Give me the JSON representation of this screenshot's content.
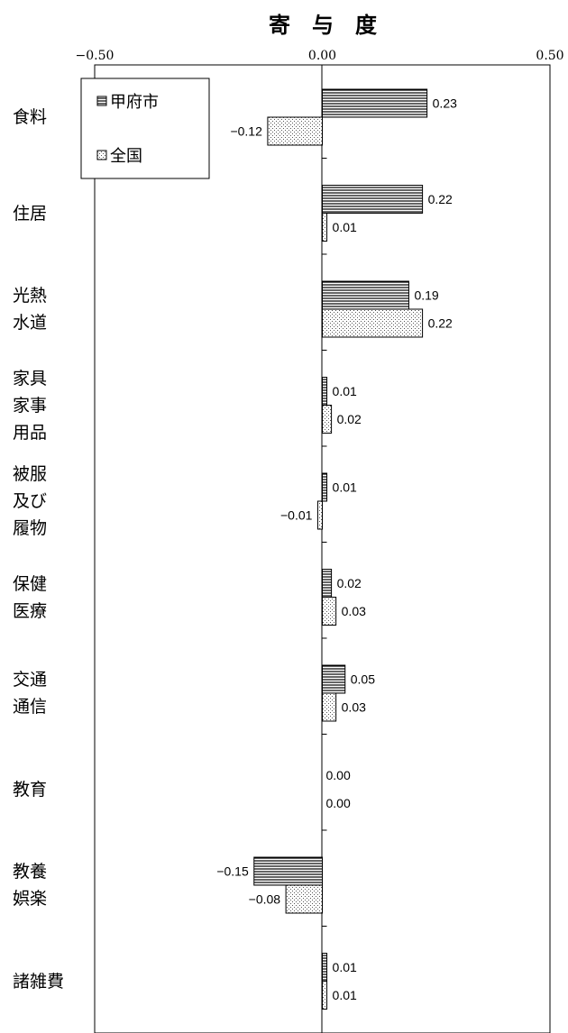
{
  "chart_data": {
    "type": "bar",
    "orientation": "horizontal",
    "title": "寄　与　度",
    "xlim": [
      -0.5,
      0.5
    ],
    "x_ticks": [
      "−0.50",
      "0.00",
      "0.50"
    ],
    "categories": [
      "食料",
      "住居",
      "光熱\n水道",
      "家具\n家事\n用品",
      "被服\n及び\n履物",
      "保健\n医療",
      "交通\n通信",
      "教育",
      "教養\n娯楽",
      "諸雑費"
    ],
    "series": [
      {
        "name": "甲府市",
        "values": [
          0.23,
          0.22,
          0.19,
          0.01,
          0.01,
          0.02,
          0.05,
          0.0,
          -0.15,
          0.01
        ],
        "labels": [
          "0.23",
          "0.22",
          "0.19",
          "0.01",
          "0.01",
          "0.02",
          "0.05",
          "0.00",
          "−0.15",
          "0.01"
        ]
      },
      {
        "name": "全国",
        "values": [
          -0.12,
          0.01,
          0.22,
          0.02,
          -0.01,
          0.03,
          0.03,
          0.0,
          -0.08,
          0.01
        ],
        "labels": [
          "−0.12",
          "0.01",
          "0.22",
          "0.02",
          "−0.01",
          "0.03",
          "0.03",
          "0.00",
          "−0.08",
          "0.01"
        ]
      }
    ],
    "legend": "top-left",
    "grid": false
  }
}
